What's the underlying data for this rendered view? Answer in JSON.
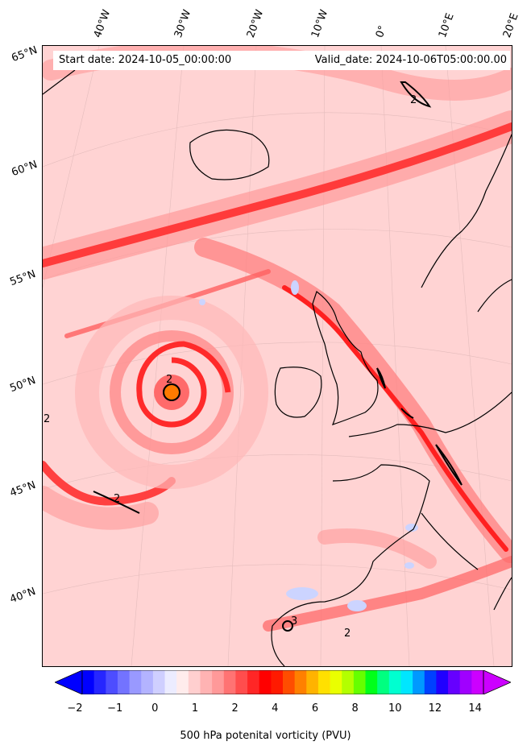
{
  "header": {
    "start_date": "Start date: 2024-10-05_00:00:00",
    "valid_date": "Valid_date: 2024-10-06T05:00:00.00"
  },
  "map": {
    "lon_labels": [
      "40°W",
      "30°W",
      "20°W",
      "10°W",
      "0°",
      "10°E",
      "20°E"
    ],
    "lat_labels": [
      "65°N",
      "60°N",
      "55°N",
      "50°N",
      "45°N",
      "40°N"
    ],
    "contour_labels": [
      "2",
      "2",
      "2",
      "2",
      "3",
      "2"
    ]
  },
  "colorbar": {
    "ticks": [
      "−2",
      "−1",
      "0",
      "1",
      "2",
      "4",
      "6",
      "8",
      "10",
      "12",
      "14"
    ],
    "label": "500 hPa potenital vorticity (PVU)",
    "colors": [
      "#0000ff",
      "#2626ff",
      "#4d4dff",
      "#7373ff",
      "#9999ff",
      "#b3b3ff",
      "#cfcfff",
      "#ececff",
      "#ffecec",
      "#ffcfcf",
      "#ffb3b3",
      "#ff9999",
      "#ff7373",
      "#ff4d4d",
      "#ff2626",
      "#ff0000",
      "#ff1a00",
      "#ff4d00",
      "#ff8000",
      "#ffb300",
      "#ffe000",
      "#eaff00",
      "#b3ff00",
      "#66ff00",
      "#00ff1a",
      "#00ff80",
      "#00ffd0",
      "#00e6ff",
      "#0099ff",
      "#0040ff",
      "#2000ff",
      "#6600ff",
      "#a000ff",
      "#cc00ff"
    ]
  }
}
